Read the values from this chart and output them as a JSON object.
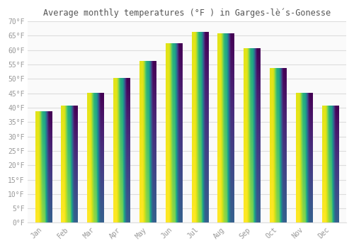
{
  "title": "Average monthly temperatures (°F ) in Garges-lè́s-Gonesse",
  "months": [
    "Jan",
    "Feb",
    "Mar",
    "Apr",
    "May",
    "Jun",
    "Jul",
    "Aug",
    "Sep",
    "Oct",
    "Nov",
    "Dec"
  ],
  "values": [
    38.5,
    40.5,
    45.0,
    50.0,
    56.0,
    62.0,
    66.0,
    65.5,
    60.5,
    53.5,
    45.0,
    40.5
  ],
  "ylim": [
    0,
    70
  ],
  "yticks": [
    0,
    5,
    10,
    15,
    20,
    25,
    30,
    35,
    40,
    45,
    50,
    55,
    60,
    65,
    70
  ],
  "bar_color": "#F5A623",
  "bar_color_light": "#FFD966",
  "background_color": "#FFFFFF",
  "plot_bg_color": "#FAFAFA",
  "grid_color": "#DDDDDD",
  "text_color": "#999999",
  "title_color": "#555555",
  "title_fontsize": 8.5,
  "tick_fontsize": 7,
  "bar_width": 0.65
}
